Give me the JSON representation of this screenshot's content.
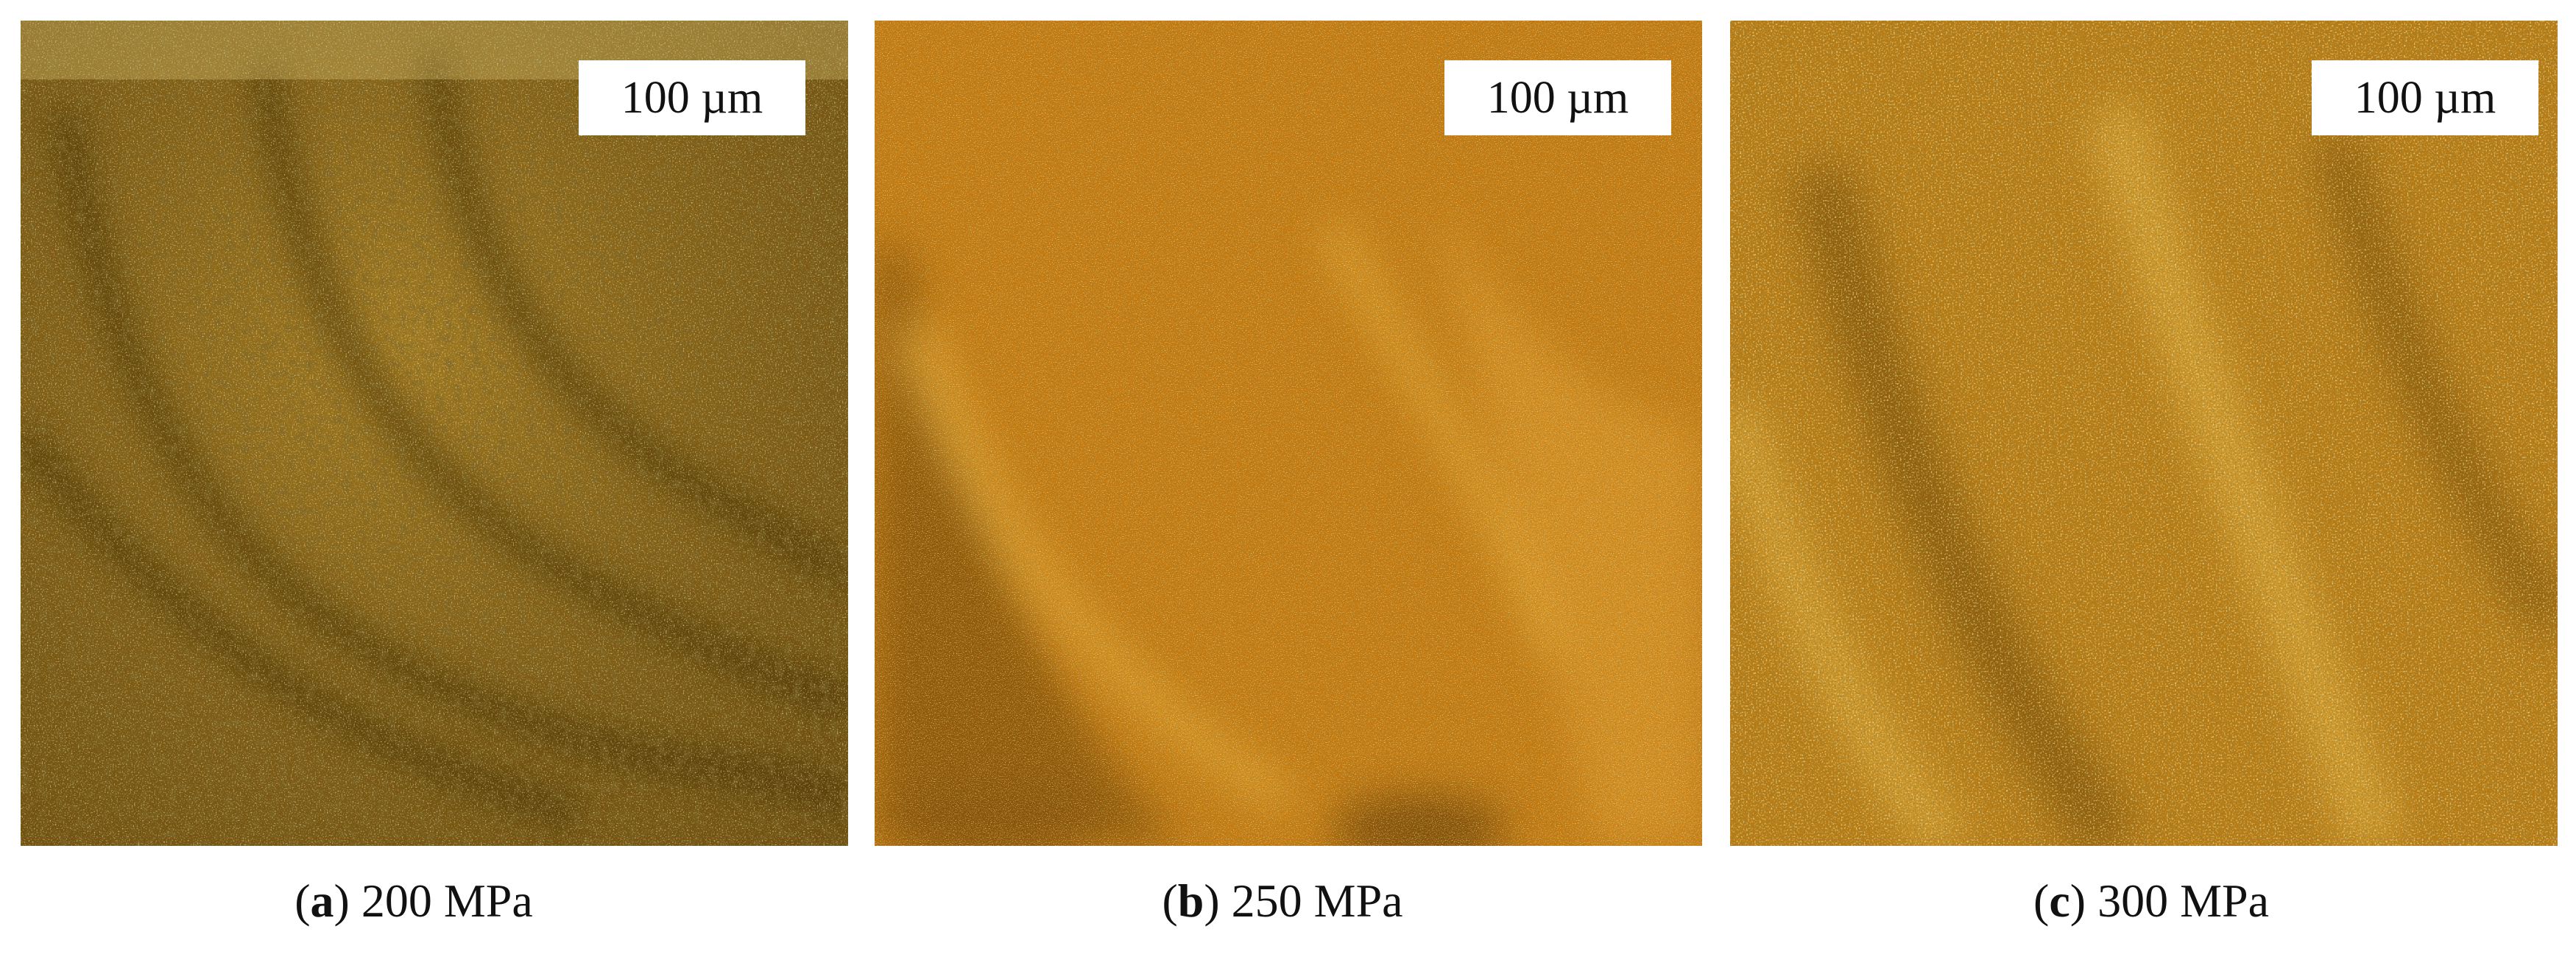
{
  "figure": {
    "panels": [
      {
        "id": "a",
        "scale_bar": "100 µm",
        "caption": {
          "open": "(",
          "letter": "a",
          "close": ")",
          "text": " 200 MPa"
        },
        "colors": {
          "base": "#8a6418",
          "dark": "#4a3508",
          "bright": "#f2d870"
        }
      },
      {
        "id": "b",
        "scale_bar": "100 µm",
        "caption": {
          "open": "(",
          "letter": "b",
          "close": ")",
          "text": " 250 MPa"
        },
        "colors": {
          "base": "#c27a12",
          "dark": "#6a3e06",
          "bright": "#ffd66a"
        }
      },
      {
        "id": "c",
        "scale_bar": "100 µm",
        "caption": {
          "open": "(",
          "letter": "c",
          "close": ")",
          "text": " 300 MPa"
        },
        "colors": {
          "base": "#b77c16",
          "dark": "#5e3a06",
          "bright": "#ffe27a"
        }
      }
    ]
  }
}
